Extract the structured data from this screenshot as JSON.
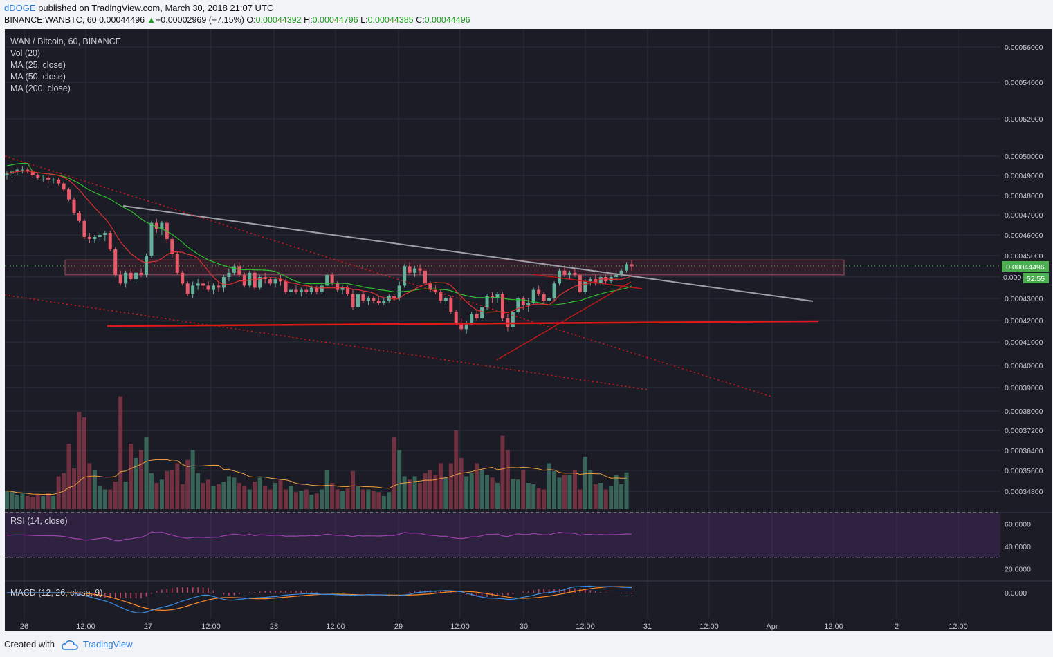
{
  "header": {
    "user": "dDOGE",
    "published": "published on TradingView.com, March 30, 2018 21:07 UTC",
    "symbol": "BINANCE:WANBTC, 60",
    "price": "0.00044496",
    "arrow": "▲",
    "change": "+0.00002969 (+7.15%)",
    "o_label": "O:",
    "o_value": "0.00044392",
    "h_label": "H:",
    "h_value": "0.00044796",
    "l_label": "L:",
    "l_value": "0.00044385",
    "c_label": "C:",
    "c_value": "0.00044496"
  },
  "legend": [
    "WAN / Bitcoin, 60, BINANCE",
    "Vol (20)",
    "MA (25, close)",
    "MA (50, close)",
    "MA (200, close)"
  ],
  "rsi_label": "RSI (14, close)",
  "macd_label": "MACD (12, 26, close, 9)",
  "footer": {
    "created": "Created with",
    "brand": "TradingView"
  },
  "colors": {
    "background": "#1b1c26",
    "grid": "#2b2e3b",
    "up": "#65b09b",
    "down": "#e75a6a",
    "ma25": "#e03030",
    "ma50": "#2fbf2f",
    "trend_grey": "#a0a0a8",
    "support_red": "#e01818",
    "rsi": "#a040b0",
    "macd": "#3a8ee6",
    "signal": "#ff8c2a",
    "volume_ma": "#f0a040",
    "price_tag": "#4caf50"
  },
  "chart_data": {
    "type": "candlestick",
    "price_axis_ticks": [
      "0.00056000",
      "0.00054000",
      "0.00052000",
      "0.00050000",
      "0.00049000",
      "0.00048000",
      "0.00047000",
      "0.00046000",
      "0.00045000",
      "0.00044496",
      "0.000",
      "0.00043000",
      "0.00042000",
      "0.00041000",
      "0.00040000",
      "0.00039000",
      "0.00038000",
      "0.00037200",
      "0.00036400",
      "0.00035600",
      "0.00034800"
    ],
    "countdown": "52:55",
    "rsi_axis_ticks": [
      "60.0000",
      "40.0000",
      "20.0000"
    ],
    "macd_axis_ticks": [
      "0.0000"
    ],
    "time_axis_ticks": [
      "26",
      "12:00",
      "27",
      "12:00",
      "28",
      "12:00",
      "29",
      "12:00",
      "30",
      "12:00",
      "31",
      "12:00",
      "Apr",
      "12:00",
      "2",
      "12:00"
    ],
    "candles_ohlc": [
      [
        0.00049,
        0.000492,
        0.000488,
        0.000491
      ],
      [
        0.000491,
        0.000493,
        0.000489,
        0.000492
      ],
      [
        0.000492,
        0.000494,
        0.00049,
        0.000493
      ],
      [
        0.000493,
        0.000495,
        0.000491,
        0.000493
      ],
      [
        0.000493,
        0.000494,
        0.000491,
        0.000492
      ],
      [
        0.000492,
        0.000493,
        0.000489,
        0.00049
      ],
      [
        0.00049,
        0.000491,
        0.000488,
        0.000489
      ],
      [
        0.000489,
        0.00049,
        0.000487,
        0.000489
      ],
      [
        0.000489,
        0.00049,
        0.000486,
        0.000488
      ],
      [
        0.000488,
        0.000489,
        0.000486,
        0.000488
      ],
      [
        0.000488,
        0.000489,
        0.000485,
        0.000486
      ],
      [
        0.000486,
        0.000487,
        0.000482,
        0.000483
      ],
      [
        0.000483,
        0.000484,
        0.000477,
        0.000478
      ],
      [
        0.000478,
        0.000479,
        0.00047,
        0.000471
      ],
      [
        0.000471,
        0.000472,
        0.000466,
        0.000467
      ],
      [
        0.000467,
        0.000468,
        0.000458,
        0.000459
      ],
      [
        0.000459,
        0.000461,
        0.000456,
        0.000458
      ],
      [
        0.000458,
        0.00046,
        0.000456,
        0.000459
      ],
      [
        0.000459,
        0.000461,
        0.000457,
        0.00046
      ],
      [
        0.00046,
        0.000462,
        0.000457,
        0.000461
      ],
      [
        0.000461,
        0.000462,
        0.000452,
        0.000453
      ],
      [
        0.000453,
        0.000454,
        0.00044,
        0.000441
      ],
      [
        0.000441,
        0.000443,
        0.000436,
        0.000437
      ],
      [
        0.000437,
        0.000443,
        0.000435,
        0.000442
      ],
      [
        0.000442,
        0.000444,
        0.000438,
        0.000439
      ],
      [
        0.000439,
        0.000442,
        0.000437,
        0.000442
      ],
      [
        0.000442,
        0.000444,
        0.00044,
        0.000441
      ],
      [
        0.000441,
        0.000451,
        0.00044,
        0.00045
      ],
      [
        0.00045,
        0.000467,
        0.000449,
        0.000466
      ],
      [
        0.000466,
        0.000468,
        0.000461,
        0.000463
      ],
      [
        0.000463,
        0.000467,
        0.00046,
        0.000466
      ],
      [
        0.000466,
        0.000467,
        0.000456,
        0.000458
      ],
      [
        0.000458,
        0.000459,
        0.000449,
        0.000451
      ],
      [
        0.000451,
        0.000452,
        0.000441,
        0.000442
      ],
      [
        0.000442,
        0.000443,
        0.000436,
        0.000437
      ],
      [
        0.000437,
        0.000438,
        0.000431,
        0.000432
      ],
      [
        0.000432,
        0.000438,
        0.00043,
        0.000436
      ],
      [
        0.000436,
        0.000439,
        0.000434,
        0.000437
      ],
      [
        0.000437,
        0.000439,
        0.000434,
        0.000436
      ],
      [
        0.000436,
        0.000438,
        0.000433,
        0.000434
      ],
      [
        0.000434,
        0.000437,
        0.000432,
        0.000436
      ],
      [
        0.000436,
        0.000438,
        0.000433,
        0.000435
      ],
      [
        0.000435,
        0.000441,
        0.000433,
        0.00044
      ],
      [
        0.00044,
        0.000444,
        0.000438,
        0.000442
      ],
      [
        0.000442,
        0.000446,
        0.000441,
        0.000445
      ],
      [
        0.000445,
        0.000447,
        0.00044,
        0.000441
      ],
      [
        0.000441,
        0.000442,
        0.000435,
        0.000436
      ],
      [
        0.000436,
        0.000443,
        0.000435,
        0.000442
      ],
      [
        0.000442,
        0.000443,
        0.000434,
        0.000435
      ],
      [
        0.000435,
        0.000441,
        0.000434,
        0.00044
      ],
      [
        0.00044,
        0.000442,
        0.000437,
        0.000439
      ],
      [
        0.000439,
        0.00044,
        0.000436,
        0.000437
      ],
      [
        0.000437,
        0.00044,
        0.000435,
        0.000439
      ],
      [
        0.000439,
        0.000441,
        0.000436,
        0.000438
      ],
      [
        0.000438,
        0.000439,
        0.000432,
        0.000433
      ],
      [
        0.000433,
        0.000435,
        0.000431,
        0.000434
      ],
      [
        0.000434,
        0.000436,
        0.000432,
        0.000433
      ],
      [
        0.000433,
        0.000435,
        0.000431,
        0.000434
      ],
      [
        0.000434,
        0.000436,
        0.000432,
        0.000433
      ],
      [
        0.000433,
        0.000436,
        0.000432,
        0.000435
      ],
      [
        0.000435,
        0.000436,
        0.000432,
        0.000433
      ],
      [
        0.000433,
        0.000437,
        0.000432,
        0.000436
      ],
      [
        0.000436,
        0.000442,
        0.000435,
        0.000441
      ],
      [
        0.000441,
        0.000442,
        0.000436,
        0.000437
      ],
      [
        0.000437,
        0.000438,
        0.000433,
        0.000434
      ],
      [
        0.000434,
        0.000436,
        0.000432,
        0.000435
      ],
      [
        0.000435,
        0.000436,
        0.000431,
        0.000432
      ],
      [
        0.000432,
        0.000434,
        0.000425,
        0.000426
      ],
      [
        0.000426,
        0.000433,
        0.000425,
        0.000432
      ],
      [
        0.000432,
        0.000433,
        0.000428,
        0.000429
      ],
      [
        0.000429,
        0.000431,
        0.000427,
        0.00043
      ],
      [
        0.00043,
        0.000431,
        0.000428,
        0.000429
      ],
      [
        0.000429,
        0.000431,
        0.000427,
        0.000428
      ],
      [
        0.000428,
        0.00043,
        0.000427,
        0.000429
      ],
      [
        0.000429,
        0.000432,
        0.000428,
        0.000431
      ],
      [
        0.000431,
        0.000432,
        0.000429,
        0.00043
      ],
      [
        0.00043,
        0.000438,
        0.000429,
        0.000436
      ],
      [
        0.000436,
        0.000446,
        0.000435,
        0.000445
      ],
      [
        0.000445,
        0.000447,
        0.000441,
        0.000442
      ],
      [
        0.000442,
        0.000445,
        0.00044,
        0.000444
      ],
      [
        0.000444,
        0.000446,
        0.000441,
        0.000443
      ],
      [
        0.000443,
        0.000444,
        0.000436,
        0.000437
      ],
      [
        0.000437,
        0.000438,
        0.000433,
        0.000434
      ],
      [
        0.000434,
        0.000436,
        0.000432,
        0.000433
      ],
      [
        0.000433,
        0.000434,
        0.000428,
        0.000429
      ],
      [
        0.000429,
        0.000431,
        0.000427,
        0.00043
      ],
      [
        0.00043,
        0.000431,
        0.000423,
        0.000424
      ],
      [
        0.000424,
        0.000425,
        0.000418,
        0.000419
      ],
      [
        0.000419,
        0.000421,
        0.000415,
        0.000416
      ],
      [
        0.000416,
        0.00042,
        0.000414,
        0.000419
      ],
      [
        0.000419,
        0.000424,
        0.000418,
        0.000423
      ],
      [
        0.000423,
        0.000425,
        0.00042,
        0.000421
      ],
      [
        0.000421,
        0.000427,
        0.00042,
        0.000426
      ],
      [
        0.000426,
        0.000432,
        0.000425,
        0.000431
      ],
      [
        0.000431,
        0.000433,
        0.000428,
        0.00043
      ],
      [
        0.00043,
        0.000433,
        0.000428,
        0.000432
      ],
      [
        0.000432,
        0.000433,
        0.00042,
        0.000421
      ],
      [
        0.000421,
        0.000423,
        0.000415,
        0.000417
      ],
      [
        0.000417,
        0.000425,
        0.000416,
        0.000424
      ],
      [
        0.000424,
        0.000431,
        0.000423,
        0.00043
      ],
      [
        0.00043,
        0.000431,
        0.000425,
        0.000427
      ],
      [
        0.000427,
        0.00043,
        0.000424,
        0.000428
      ],
      [
        0.000428,
        0.000435,
        0.000427,
        0.000434
      ],
      [
        0.000434,
        0.000436,
        0.000431,
        0.000432
      ],
      [
        0.000432,
        0.000433,
        0.000428,
        0.000429
      ],
      [
        0.000429,
        0.000431,
        0.000428,
        0.00043
      ],
      [
        0.00043,
        0.000438,
        0.000429,
        0.000437
      ],
      [
        0.000437,
        0.000444,
        0.000436,
        0.000443
      ],
      [
        0.000443,
        0.000445,
        0.00044,
        0.000441
      ],
      [
        0.000441,
        0.000443,
        0.000439,
        0.000442
      ],
      [
        0.000442,
        0.000444,
        0.00044,
        0.000441
      ],
      [
        0.000441,
        0.000442,
        0.000432,
        0.000433
      ],
      [
        0.000433,
        0.000439,
        0.000432,
        0.000438
      ],
      [
        0.000438,
        0.00044,
        0.000436,
        0.000439
      ],
      [
        0.000439,
        0.000441,
        0.000436,
        0.000437
      ],
      [
        0.000437,
        0.000441,
        0.000436,
        0.00044
      ],
      [
        0.00044,
        0.000441,
        0.000437,
        0.000438
      ],
      [
        0.000438,
        0.000441,
        0.000437,
        0.00044
      ],
      [
        0.00044,
        0.000442,
        0.000438,
        0.000441
      ],
      [
        0.000441,
        0.000444,
        0.00044,
        0.000443
      ],
      [
        0.000443,
        0.000447,
        0.000442,
        0.000446
      ],
      [
        0.000446,
        0.000448,
        0.000443,
        0.000445
      ]
    ],
    "annotations": [
      "grey descending trendline",
      "red horizontal support ~0.000419",
      "red dotted descending channel",
      "red rising wedge lines",
      "shaded resistance zone 0.000441–0.000448"
    ]
  }
}
